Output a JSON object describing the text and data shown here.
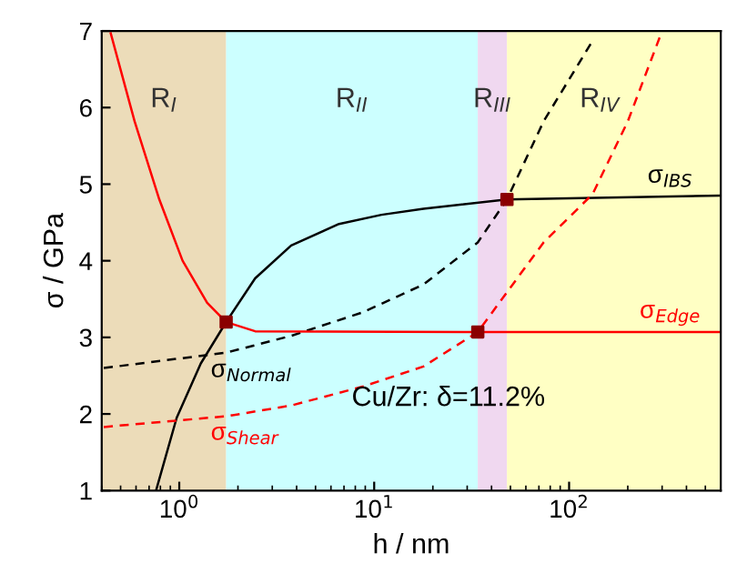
{
  "chart_data": {
    "type": "line",
    "xlabel": "h / nm",
    "ylabel": "σ / GPa",
    "log": "x",
    "grid": false,
    "legend": false,
    "xlim": [
      0.4,
      600
    ],
    "xticks": [
      {
        "value": 1,
        "label": "10$^{0}$"
      },
      {
        "value": 10,
        "label": "10$^{1}$"
      },
      {
        "value": 100,
        "label": "10$^{2}$"
      }
    ],
    "ylim": [
      1,
      7
    ],
    "yticks": [
      1,
      2,
      3,
      4,
      5,
      6,
      7
    ],
    "bands": [
      {
        "axis": "x",
        "from": 0.4,
        "to": 1.74,
        "label": "R$_{I}$",
        "color": "#ecdcb9"
      },
      {
        "axis": "x",
        "from": 1.74,
        "to": 34,
        "label": "R$_{II}$",
        "color": "#ccffff"
      },
      {
        "axis": "x",
        "from": 34,
        "to": 48,
        "label": "R$_{III}$",
        "color": "#f0d8f0"
      },
      {
        "axis": "x",
        "from": 48,
        "to": 600,
        "label": "R$_{IV}$",
        "color": "#ffffc4"
      }
    ],
    "annotations": [
      "Cu/Zr: δ=11.2%"
    ],
    "series": [
      {
        "name": "σ$_{IBS}$",
        "color": "#000000",
        "line_style": "solid",
        "x": [
          0.76,
          0.97,
          1.29,
          1.74,
          2.45,
          3.75,
          6.6,
          10.9,
          17.9,
          48,
          600
        ],
        "values": [
          1.0,
          1.95,
          2.66,
          3.2,
          3.77,
          4.2,
          4.48,
          4.6,
          4.68,
          4.8,
          4.85
        ]
      },
      {
        "name": "σ$_{Normal}$",
        "color": "#000000",
        "line_style": "dashed",
        "x": [
          0.41,
          1.74,
          3.75,
          8.8,
          17.9,
          34,
          48,
          74,
          134
        ],
        "values": [
          2.6,
          2.8,
          3.02,
          3.33,
          3.69,
          4.24,
          4.8,
          5.82,
          6.9
        ]
      },
      {
        "name": "σ$_{Edge}$",
        "color": "#ff0000",
        "line_style": "solid",
        "x": [
          0.445,
          0.59,
          0.79,
          1.04,
          1.39,
          1.74,
          2.45,
          34,
          600
        ],
        "values": [
          6.97,
          5.82,
          4.8,
          4.0,
          3.45,
          3.2,
          3.08,
          3.07,
          3.07
        ]
      },
      {
        "name": "σ$_{Shear}$",
        "color": "#ff0000",
        "line_style": "dashed",
        "x": [
          0.41,
          1.74,
          3.75,
          8.8,
          17.9,
          34,
          74,
          132,
          200,
          297
        ],
        "values": [
          1.83,
          1.97,
          2.11,
          2.36,
          2.62,
          3.07,
          4.24,
          4.87,
          5.82,
          6.97
        ]
      },
      {
        "type": "scatter",
        "marker": "square",
        "color": "#8b0000",
        "x": [
          1.74,
          34,
          48
        ],
        "values": [
          3.2,
          3.07,
          4.8
        ]
      }
    ]
  }
}
